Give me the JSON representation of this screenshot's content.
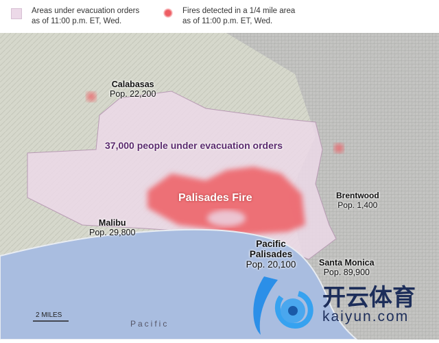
{
  "legend": {
    "evac": {
      "line1": "Areas under evacuation orders",
      "line2": "as of 11:00 p.m. ET, Wed.",
      "color": "#ecd9e8"
    },
    "fire": {
      "line1": "Fires detected in a 1/4 mile area",
      "line2": "as of 11:00 p.m. ET, Wed.",
      "color": "#ee5d63"
    }
  },
  "map": {
    "headline": "37,000 people under evacuation orders",
    "fire_label": "Palisades Fire",
    "places": [
      {
        "name": "Calabasas",
        "pop": "Pop. 22,200"
      },
      {
        "name": "Brentwood",
        "pop": "Pop. 1,400"
      },
      {
        "name": "Malibu",
        "pop": "Pop. 29,800"
      },
      {
        "name": "Pacific Palisades",
        "pop": "Pop. 20,100"
      },
      {
        "name": "Santa Monica",
        "pop": "Pop. 89,900"
      }
    ],
    "ocean_label": "Pacific",
    "scale": "2 MILES",
    "colors": {
      "land": "#d9dbcf",
      "ocean": "#a9bde0",
      "evac": "#ecd9e8",
      "fire": "#ee5d63",
      "headline": "#5b2a6e"
    }
  },
  "watermark": {
    "cn": "开云体育",
    "en": "kaiyun.com"
  }
}
